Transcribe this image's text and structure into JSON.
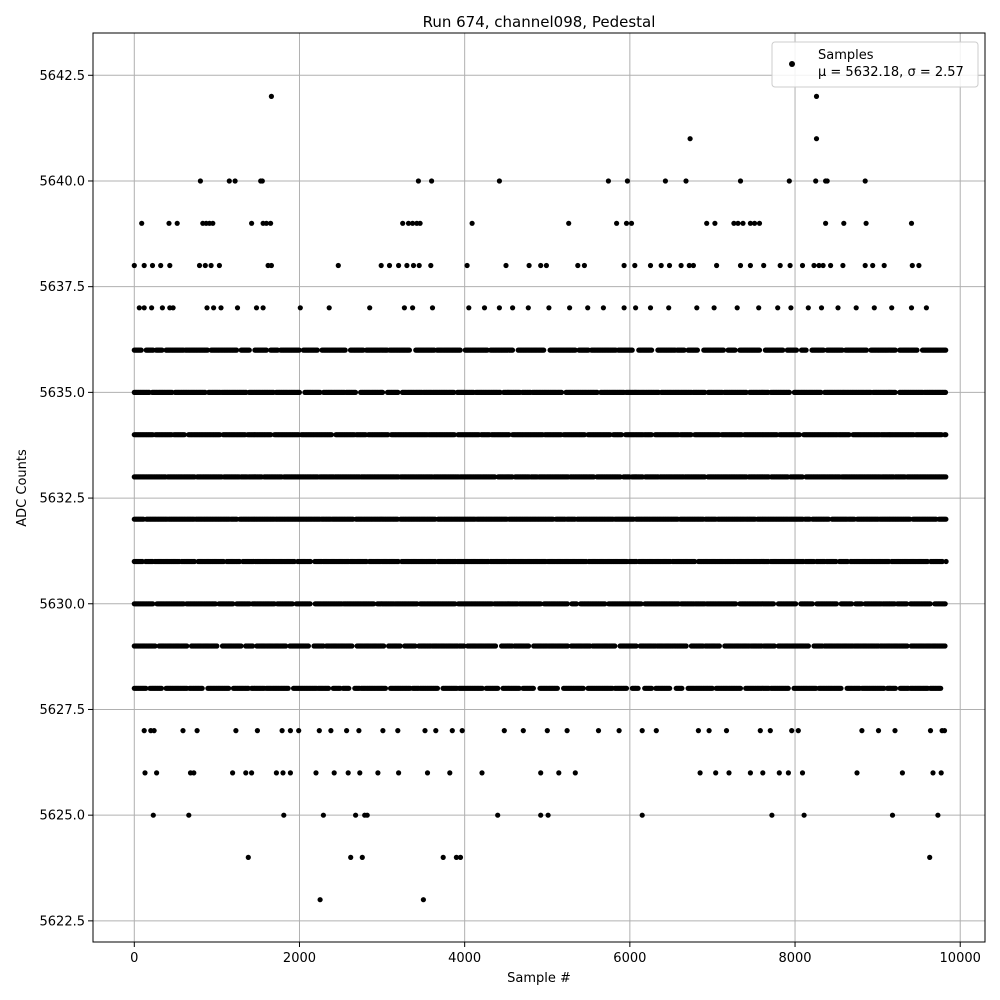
{
  "chart_data": {
    "type": "scatter",
    "title": "Run 674, channel098, Pedestal",
    "xlabel": "Sample #",
    "ylabel": "ADC Counts",
    "xlim": [
      -500,
      10300
    ],
    "ylim": [
      5622.0,
      5643.5
    ],
    "xticks": [
      0,
      2000,
      4000,
      6000,
      8000,
      10000
    ],
    "yticks": [
      5622.5,
      5625.0,
      5627.5,
      5630.0,
      5632.5,
      5635.0,
      5637.5,
      5640.0,
      5642.5
    ],
    "ytick_labels": [
      "5622.5",
      "5625.0",
      "5627.5",
      "5630.0",
      "5632.5",
      "5635.0",
      "5637.5",
      "5640.0",
      "5642.5"
    ],
    "xtick_labels": [
      "0",
      "2000",
      "4000",
      "6000",
      "8000",
      "10000"
    ],
    "grid": true,
    "legend_position": "top-right",
    "series": [
      {
        "name": "Samples",
        "legend_label_line2": "μ = 5632.18, σ = 2.57",
        "color": "#000000",
        "mean": 5632.18,
        "std": 2.57,
        "n_samples": 9830,
        "x_start": 0,
        "x_end": 9830,
        "dense_levels": [
          5628,
          5629,
          5630,
          5631,
          5632,
          5633,
          5634,
          5635,
          5636
        ],
        "sparse_points": [
          [
            1660,
            5642
          ],
          [
            8260,
            5642
          ],
          [
            6730,
            5641
          ],
          [
            8260,
            5641
          ],
          [
            800,
            5640
          ],
          [
            1150,
            5640
          ],
          [
            1220,
            5640
          ],
          [
            1530,
            5640
          ],
          [
            1550,
            5640
          ],
          [
            3440,
            5640
          ],
          [
            3600,
            5640
          ],
          [
            4420,
            5640
          ],
          [
            5740,
            5640
          ],
          [
            5970,
            5640
          ],
          [
            6430,
            5640
          ],
          [
            6680,
            5640
          ],
          [
            7340,
            5640
          ],
          [
            7930,
            5640
          ],
          [
            8250,
            5640
          ],
          [
            8370,
            5640
          ],
          [
            8390,
            5640
          ],
          [
            8850,
            5640
          ],
          [
            90,
            5639
          ],
          [
            420,
            5639
          ],
          [
            520,
            5639
          ],
          [
            830,
            5639
          ],
          [
            870,
            5639
          ],
          [
            910,
            5639
          ],
          [
            950,
            5639
          ],
          [
            1420,
            5639
          ],
          [
            1560,
            5639
          ],
          [
            1600,
            5639
          ],
          [
            1650,
            5639
          ],
          [
            3250,
            5639
          ],
          [
            3320,
            5639
          ],
          [
            3370,
            5639
          ],
          [
            3420,
            5639
          ],
          [
            3460,
            5639
          ],
          [
            4090,
            5639
          ],
          [
            5260,
            5639
          ],
          [
            5840,
            5639
          ],
          [
            5960,
            5639
          ],
          [
            6020,
            5639
          ],
          [
            6930,
            5639
          ],
          [
            7030,
            5639
          ],
          [
            7260,
            5639
          ],
          [
            7310,
            5639
          ],
          [
            7370,
            5639
          ],
          [
            7460,
            5639
          ],
          [
            7510,
            5639
          ],
          [
            7570,
            5639
          ],
          [
            8370,
            5639
          ],
          [
            8590,
            5639
          ],
          [
            8860,
            5639
          ],
          [
            9410,
            5639
          ],
          [
            0,
            5638
          ],
          [
            120,
            5638
          ],
          [
            220,
            5638
          ],
          [
            320,
            5638
          ],
          [
            430,
            5638
          ],
          [
            790,
            5638
          ],
          [
            860,
            5638
          ],
          [
            930,
            5638
          ],
          [
            1030,
            5638
          ],
          [
            1620,
            5638
          ],
          [
            1660,
            5638
          ],
          [
            2470,
            5638
          ],
          [
            2990,
            5638
          ],
          [
            3090,
            5638
          ],
          [
            3200,
            5638
          ],
          [
            3300,
            5638
          ],
          [
            3380,
            5638
          ],
          [
            3450,
            5638
          ],
          [
            3590,
            5638
          ],
          [
            4030,
            5638
          ],
          [
            4500,
            5638
          ],
          [
            4780,
            5638
          ],
          [
            4920,
            5638
          ],
          [
            4990,
            5638
          ],
          [
            5370,
            5638
          ],
          [
            5450,
            5638
          ],
          [
            5930,
            5638
          ],
          [
            6060,
            5638
          ],
          [
            6250,
            5638
          ],
          [
            6380,
            5638
          ],
          [
            6480,
            5638
          ],
          [
            6620,
            5638
          ],
          [
            6720,
            5638
          ],
          [
            6770,
            5638
          ],
          [
            7050,
            5638
          ],
          [
            7340,
            5638
          ],
          [
            7460,
            5638
          ],
          [
            7620,
            5638
          ],
          [
            7820,
            5638
          ],
          [
            7940,
            5638
          ],
          [
            8090,
            5638
          ],
          [
            8230,
            5638
          ],
          [
            8290,
            5638
          ],
          [
            8340,
            5638
          ],
          [
            8430,
            5638
          ],
          [
            8580,
            5638
          ],
          [
            8850,
            5638
          ],
          [
            8940,
            5638
          ],
          [
            9080,
            5638
          ],
          [
            9420,
            5638
          ],
          [
            9500,
            5638
          ],
          [
            60,
            5637
          ],
          [
            120,
            5637
          ],
          [
            210,
            5637
          ],
          [
            340,
            5637
          ],
          [
            430,
            5637
          ],
          [
            470,
            5637
          ],
          [
            880,
            5637
          ],
          [
            960,
            5637
          ],
          [
            1050,
            5637
          ],
          [
            1250,
            5637
          ],
          [
            1480,
            5637
          ],
          [
            1560,
            5637
          ],
          [
            2010,
            5637
          ],
          [
            2360,
            5637
          ],
          [
            2850,
            5637
          ],
          [
            3270,
            5637
          ],
          [
            3370,
            5637
          ],
          [
            3610,
            5637
          ],
          [
            4050,
            5637
          ],
          [
            4240,
            5637
          ],
          [
            4420,
            5637
          ],
          [
            4580,
            5637
          ],
          [
            4770,
            5637
          ],
          [
            5020,
            5637
          ],
          [
            5270,
            5637
          ],
          [
            5490,
            5637
          ],
          [
            5680,
            5637
          ],
          [
            5930,
            5637
          ],
          [
            6070,
            5637
          ],
          [
            6250,
            5637
          ],
          [
            6470,
            5637
          ],
          [
            6810,
            5637
          ],
          [
            7020,
            5637
          ],
          [
            7300,
            5637
          ],
          [
            7560,
            5637
          ],
          [
            7790,
            5637
          ],
          [
            7950,
            5637
          ],
          [
            8160,
            5637
          ],
          [
            8320,
            5637
          ],
          [
            8520,
            5637
          ],
          [
            8740,
            5637
          ],
          [
            8960,
            5637
          ],
          [
            9170,
            5637
          ],
          [
            9410,
            5637
          ],
          [
            9590,
            5637
          ],
          [
            120,
            5627
          ],
          [
            200,
            5627
          ],
          [
            240,
            5627
          ],
          [
            590,
            5627
          ],
          [
            760,
            5627
          ],
          [
            1230,
            5627
          ],
          [
            1490,
            5627
          ],
          [
            1790,
            5627
          ],
          [
            1890,
            5627
          ],
          [
            1990,
            5627
          ],
          [
            2240,
            5627
          ],
          [
            2380,
            5627
          ],
          [
            2570,
            5627
          ],
          [
            2720,
            5627
          ],
          [
            3010,
            5627
          ],
          [
            3190,
            5627
          ],
          [
            3520,
            5627
          ],
          [
            3650,
            5627
          ],
          [
            3850,
            5627
          ],
          [
            3970,
            5627
          ],
          [
            4480,
            5627
          ],
          [
            4710,
            5627
          ],
          [
            5000,
            5627
          ],
          [
            5240,
            5627
          ],
          [
            5620,
            5627
          ],
          [
            5870,
            5627
          ],
          [
            6150,
            5627
          ],
          [
            6320,
            5627
          ],
          [
            6830,
            5627
          ],
          [
            6960,
            5627
          ],
          [
            7170,
            5627
          ],
          [
            7580,
            5627
          ],
          [
            7700,
            5627
          ],
          [
            7960,
            5627
          ],
          [
            8040,
            5627
          ],
          [
            8810,
            5627
          ],
          [
            9010,
            5627
          ],
          [
            9210,
            5627
          ],
          [
            9640,
            5627
          ],
          [
            9780,
            5627
          ],
          [
            9810,
            5627
          ],
          [
            130,
            5626
          ],
          [
            270,
            5626
          ],
          [
            680,
            5626
          ],
          [
            720,
            5626
          ],
          [
            1190,
            5626
          ],
          [
            1350,
            5626
          ],
          [
            1420,
            5626
          ],
          [
            1720,
            5626
          ],
          [
            1800,
            5626
          ],
          [
            1890,
            5626
          ],
          [
            2200,
            5626
          ],
          [
            2420,
            5626
          ],
          [
            2590,
            5626
          ],
          [
            2730,
            5626
          ],
          [
            2950,
            5626
          ],
          [
            3200,
            5626
          ],
          [
            3550,
            5626
          ],
          [
            3820,
            5626
          ],
          [
            4210,
            5626
          ],
          [
            4920,
            5626
          ],
          [
            5140,
            5626
          ],
          [
            5340,
            5626
          ],
          [
            6850,
            5626
          ],
          [
            7040,
            5626
          ],
          [
            7200,
            5626
          ],
          [
            7460,
            5626
          ],
          [
            7610,
            5626
          ],
          [
            7810,
            5626
          ],
          [
            7920,
            5626
          ],
          [
            8090,
            5626
          ],
          [
            8750,
            5626
          ],
          [
            9300,
            5626
          ],
          [
            9670,
            5626
          ],
          [
            9770,
            5626
          ],
          [
            230,
            5625
          ],
          [
            660,
            5625
          ],
          [
            1810,
            5625
          ],
          [
            2290,
            5625
          ],
          [
            2680,
            5625
          ],
          [
            2790,
            5625
          ],
          [
            2820,
            5625
          ],
          [
            4400,
            5625
          ],
          [
            4920,
            5625
          ],
          [
            5010,
            5625
          ],
          [
            6150,
            5625
          ],
          [
            7720,
            5625
          ],
          [
            8110,
            5625
          ],
          [
            9180,
            5625
          ],
          [
            9730,
            5625
          ],
          [
            1380,
            5624
          ],
          [
            2620,
            5624
          ],
          [
            2760,
            5624
          ],
          [
            3740,
            5624
          ],
          [
            3900,
            5624
          ],
          [
            3950,
            5624
          ],
          [
            9630,
            5624
          ],
          [
            2250,
            5623
          ],
          [
            3500,
            5623
          ]
        ]
      }
    ]
  }
}
